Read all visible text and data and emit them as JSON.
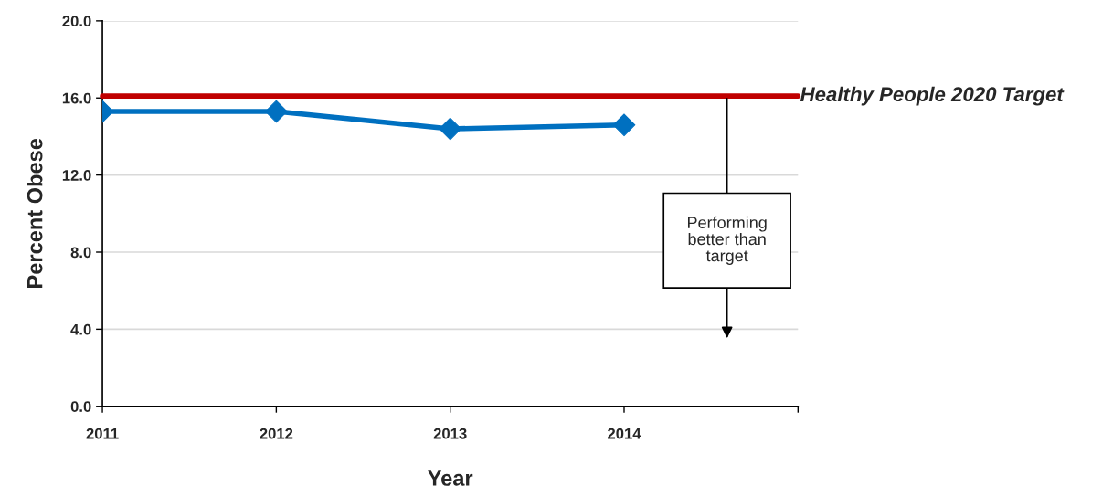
{
  "chart_data": {
    "type": "line",
    "xlabel": "Year",
    "ylabel": "Percent Obese",
    "x": [
      2011,
      2012,
      2013,
      2014
    ],
    "series": [
      {
        "color": "#0070c0",
        "values": [
          15.3,
          15.3,
          14.4,
          14.6
        ]
      }
    ],
    "xlim": [
      2011,
      2015
    ],
    "xticks": [
      2011,
      2012,
      2013,
      2014,
      {
        "value": 2015,
        "label": null
      }
    ],
    "ylim": [
      0,
      20
    ],
    "yticks": [
      {
        "value": 0,
        "label": "0.0"
      },
      {
        "value": 4,
        "label": "4.0"
      },
      {
        "value": 8,
        "label": "8.0"
      },
      {
        "value": 12,
        "label": "12.0"
      },
      {
        "value": 16,
        "label": "16.0"
      },
      {
        "value": 20,
        "label": "20.0"
      }
    ],
    "ref_lines": [
      {
        "axis": "y",
        "value": 16.1,
        "label": "Healthy People 2020 Target",
        "color": "#c00000"
      }
    ],
    "annotations": [
      "Performing better than target"
    ],
    "grid": "y",
    "marker": "diamond",
    "line_style": "solid",
    "legend": false
  }
}
